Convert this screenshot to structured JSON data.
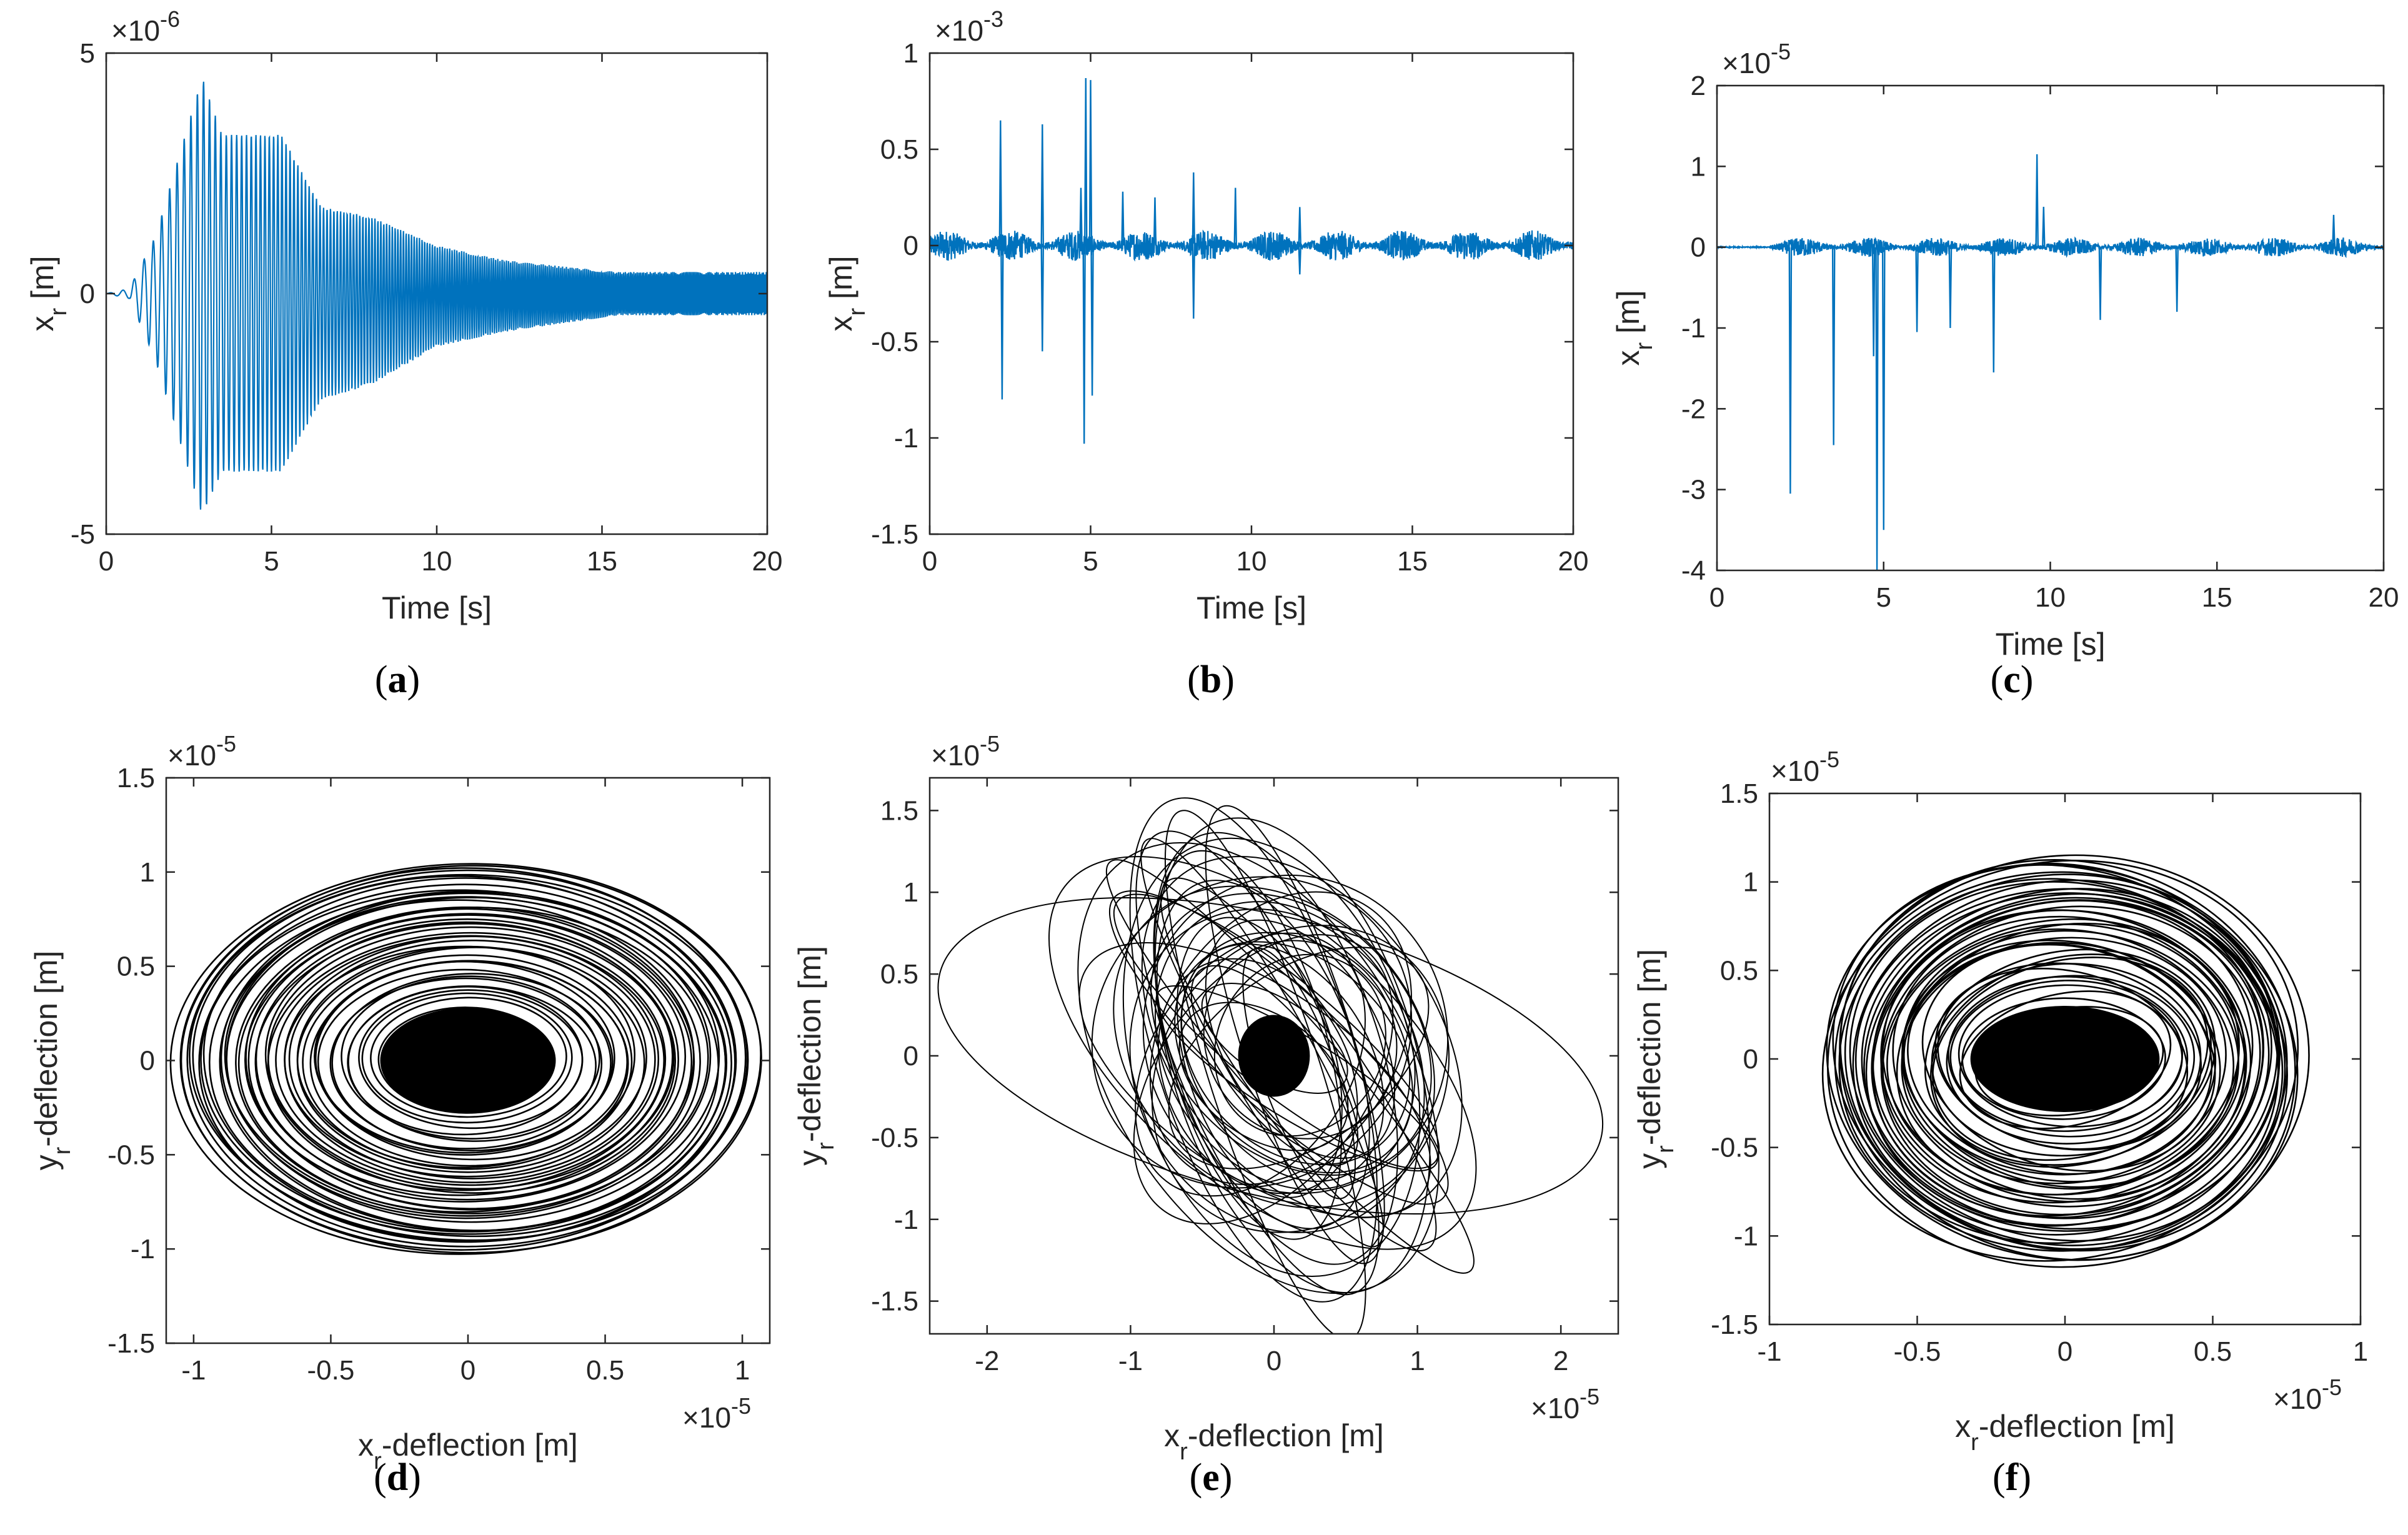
{
  "figure": {
    "captions": [
      "(a)",
      "(b)",
      "(c)",
      "(d)",
      "(e)",
      "(f)"
    ],
    "caption_letters": [
      "a",
      "b",
      "c",
      "d",
      "e",
      "f"
    ]
  },
  "chart_data": [
    {
      "panel": "a",
      "type": "line",
      "color": "#0072BD",
      "xlabel": "Time [s]",
      "ylabel": "x_r [m]",
      "xlim": [
        0,
        20
      ],
      "ylim": [
        -5,
        5
      ],
      "y_exponent": "×10^-6",
      "xticks": [
        "0",
        "5",
        "10",
        "15",
        "20"
      ],
      "yticks": [
        "-5",
        "0",
        "5"
      ],
      "series": [
        {
          "x": [
            0,
            0.7,
            1.5,
            2.9,
            3.5,
            5.3,
            6.5,
            8,
            10,
            12,
            14,
            15.5,
            20
          ],
          "upper": [
            0,
            0.1,
            1.2,
            4.5,
            3.3,
            3.3,
            1.8,
            1.6,
            1.0,
            0.7,
            0.55,
            0.45,
            0.45
          ],
          "lower": [
            0,
            -0.1,
            -1.4,
            -4.6,
            -3.7,
            -3.7,
            -2.2,
            -1.9,
            -1.1,
            -0.8,
            -0.6,
            -0.45,
            -0.45
          ]
        }
      ]
    },
    {
      "panel": "b",
      "type": "line",
      "color": "#0072BD",
      "xlabel": "Time [s]",
      "ylabel": "x_r [m]",
      "xlim": [
        0,
        20
      ],
      "ylim": [
        -1.5,
        1
      ],
      "y_exponent": "×10^-3",
      "xticks": [
        "0",
        "5",
        "10",
        "15",
        "20"
      ],
      "yticks": [
        "-1.5",
        "-1",
        "-0.5",
        "0",
        "0.5",
        "1"
      ],
      "series": [
        {
          "baseline_amplitude": 0.08,
          "spikes": [
            [
              2.2,
              0.65
            ],
            [
              2.25,
              -0.8
            ],
            [
              3.5,
              0.63
            ],
            [
              3.5,
              -0.55
            ],
            [
              4.7,
              0.3
            ],
            [
              4.8,
              -1.03
            ],
            [
              4.85,
              0.87
            ],
            [
              5.0,
              0.86
            ],
            [
              5.05,
              -0.78
            ],
            [
              6.0,
              0.28
            ],
            [
              7.0,
              0.25
            ],
            [
              8.2,
              0.38
            ],
            [
              8.2,
              -0.38
            ],
            [
              9.5,
              0.3
            ],
            [
              11.5,
              0.2
            ],
            [
              11.5,
              -0.15
            ]
          ]
        }
      ]
    },
    {
      "panel": "c",
      "type": "line",
      "color": "#0072BD",
      "xlabel": "Time [s]",
      "ylabel": "x_r [m]",
      "xlim": [
        0,
        20
      ],
      "ylim": [
        -4,
        2
      ],
      "y_exponent": "×10^-5",
      "xticks": [
        "0",
        "5",
        "10",
        "15",
        "20"
      ],
      "yticks": [
        "-4",
        "-3",
        "-2",
        "-1",
        "0",
        "1",
        "2"
      ],
      "series": [
        {
          "baseline_amplitude": 0.12,
          "spikes": [
            [
              2.2,
              -3.05
            ],
            [
              3.5,
              -2.45
            ],
            [
              4.7,
              -1.35
            ],
            [
              4.8,
              -4.0
            ],
            [
              5.0,
              -3.5
            ],
            [
              6.0,
              -1.05
            ],
            [
              7.0,
              -1.0
            ],
            [
              8.3,
              -1.55
            ],
            [
              9.6,
              1.15
            ],
            [
              9.8,
              0.5
            ],
            [
              11.5,
              -0.9
            ],
            [
              13.8,
              -0.8
            ],
            [
              18.5,
              0.4
            ]
          ]
        }
      ]
    },
    {
      "panel": "d",
      "type": "scatter",
      "render": "orbit",
      "color": "#000000",
      "xlabel": "x_r-deflection [m]",
      "ylabel": "y_r-deflection [m]",
      "xlim": [
        -1.1,
        1.1
      ],
      "ylim": [
        -1.5,
        1.5
      ],
      "x_exponent": "×10^-5",
      "y_exponent": "×10^-5",
      "xticks": [
        "-1",
        "-0.5",
        "0",
        "0.5",
        "1"
      ],
      "yticks": [
        "-1.5",
        "-1",
        "-0.5",
        "0",
        "0.5",
        "1",
        "1.5"
      ],
      "orbit": {
        "max_radius_x": 1.08,
        "max_radius_y": 1.05,
        "core_radius_x": 0.32,
        "core_radius_y": 0.28
      }
    },
    {
      "panel": "e",
      "type": "scatter",
      "render": "orbit",
      "color": "#000000",
      "xlabel": "x_r-deflection [m]",
      "ylabel": "y_r-deflection [m]",
      "xlim": [
        -2.4,
        2.4
      ],
      "ylim": [
        -1.7,
        1.7
      ],
      "x_exponent": "×10^-5",
      "y_exponent": "×10^-5",
      "xticks": [
        "-2",
        "-1",
        "0",
        "1",
        "2"
      ],
      "yticks": [
        "-1.5",
        "-1",
        "-0.5",
        "0",
        "0.5",
        "1",
        "1.5"
      ],
      "orbit": {
        "tilted_extent_x": 1.4,
        "tilted_extent_y": 1.7,
        "outer_loop_x": [
          -2.4,
          2.35
        ],
        "outer_loop_y": [
          -0.9,
          0.85
        ],
        "core_radius_x": 0.25,
        "core_radius_y": 0.25
      }
    },
    {
      "panel": "f",
      "type": "scatter",
      "render": "orbit",
      "color": "#000000",
      "xlabel": "x_r-deflection [m]",
      "ylabel": "y_r-deflection [m]",
      "xlim": [
        -1,
        1
      ],
      "ylim": [
        -1.5,
        1.5
      ],
      "x_exponent": "×10^-5",
      "y_exponent": "×10^-5",
      "xticks": [
        "-1",
        "-0.5",
        "0",
        "0.5",
        "1"
      ],
      "yticks": [
        "-1.5",
        "-1",
        "-0.5",
        "0",
        "0.5",
        "1",
        "1.5"
      ],
      "orbit": {
        "max_radius_x": 0.82,
        "max_radius_y": 1.17,
        "core_radius_x": 0.32,
        "core_radius_y": 0.3
      }
    }
  ]
}
